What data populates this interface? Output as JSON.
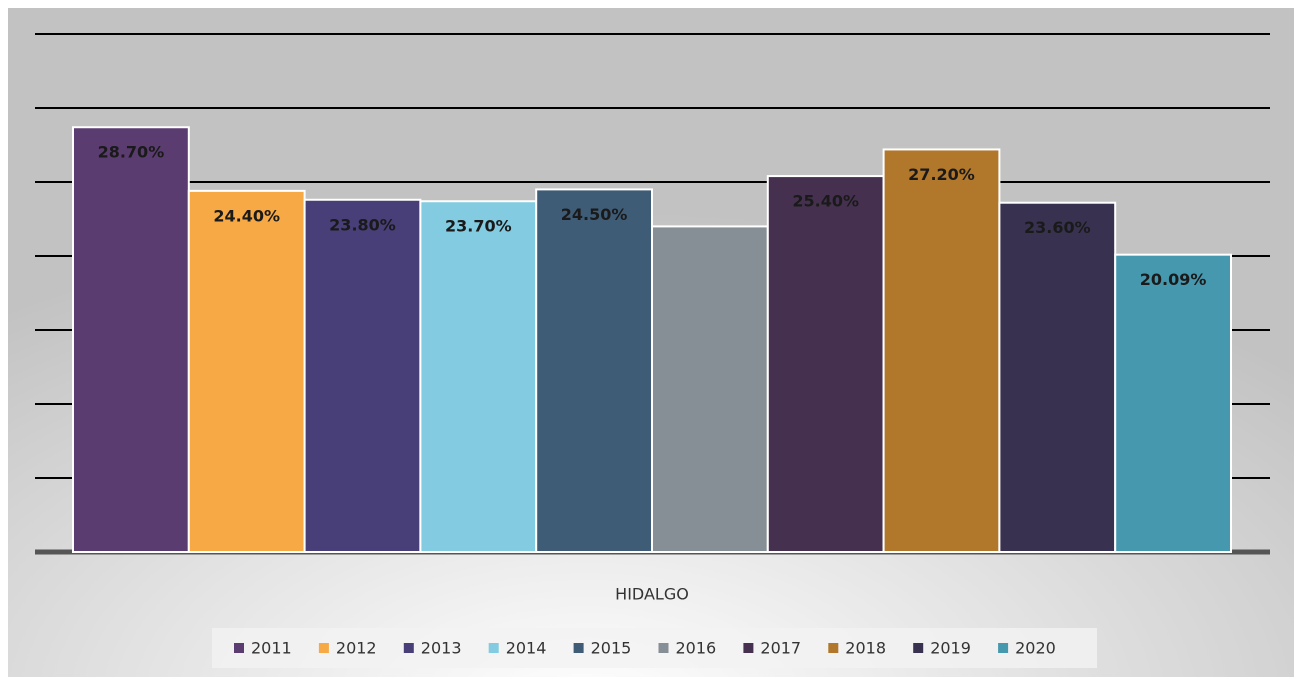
{
  "chart_data": {
    "type": "bar",
    "categories": [
      "HIDALGO"
    ],
    "series": [
      {
        "name": "2011",
        "color": "#5b3c70",
        "values": [
          28.7
        ],
        "value_labels": [
          "28.70%"
        ]
      },
      {
        "name": "2012",
        "color": "#f6a945",
        "values": [
          24.4
        ],
        "value_labels": [
          "24.40%"
        ]
      },
      {
        "name": "2013",
        "color": "#483e78",
        "values": [
          23.8
        ],
        "value_labels": [
          "23.80%"
        ]
      },
      {
        "name": "2014",
        "color": "#82cbe0",
        "values": [
          23.7
        ],
        "value_labels": [
          "23.70%"
        ]
      },
      {
        "name": "2015",
        "color": "#3e5c76",
        "values": [
          24.5
        ],
        "value_labels": [
          "24.50%"
        ]
      },
      {
        "name": "2016",
        "color": "#878f96",
        "values": [
          22.0
        ]
      },
      {
        "name": "2017",
        "color": "#45314f",
        "values": [
          25.4
        ],
        "value_labels": [
          "25.40%"
        ]
      },
      {
        "name": "2018",
        "color": "#b1772b",
        "values": [
          27.2
        ],
        "value_labels": [
          "27.20%"
        ]
      },
      {
        "name": "2019",
        "color": "#383250",
        "values": [
          23.6
        ],
        "value_labels": [
          "23.60%"
        ]
      },
      {
        "name": "2020",
        "color": "#4698ae",
        "values": [
          20.09
        ],
        "value_labels": [
          "20.09%"
        ]
      }
    ],
    "ylim": [
      0,
      35
    ],
    "yticks": [
      0,
      5,
      10,
      15,
      20,
      25,
      30,
      35
    ],
    "grid": true
  }
}
